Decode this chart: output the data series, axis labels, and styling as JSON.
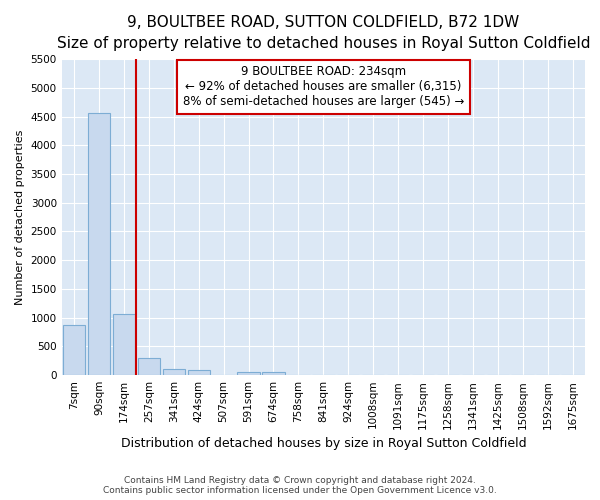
{
  "title": "9, BOULTBEE ROAD, SUTTON COLDFIELD, B72 1DW",
  "subtitle": "Size of property relative to detached houses in Royal Sutton Coldfield",
  "xlabel": "Distribution of detached houses by size in Royal Sutton Coldfield",
  "ylabel": "Number of detached properties",
  "footer_line1": "Contains HM Land Registry data © Crown copyright and database right 2024.",
  "footer_line2": "Contains public sector information licensed under the Open Government Licence v3.0.",
  "categories": [
    "7sqm",
    "90sqm",
    "174sqm",
    "257sqm",
    "341sqm",
    "424sqm",
    "507sqm",
    "591sqm",
    "674sqm",
    "758sqm",
    "841sqm",
    "924sqm",
    "1008sqm",
    "1091sqm",
    "1175sqm",
    "1258sqm",
    "1341sqm",
    "1425sqm",
    "1508sqm",
    "1592sqm",
    "1675sqm"
  ],
  "values": [
    880,
    4560,
    1060,
    290,
    100,
    90,
    0,
    55,
    55,
    0,
    0,
    0,
    0,
    0,
    0,
    0,
    0,
    0,
    0,
    0,
    0
  ],
  "bar_color": "#c8d9ee",
  "bar_edge_color": "#7dadd4",
  "vline_color": "#cc0000",
  "ylim": [
    0,
    5500
  ],
  "yticks": [
    0,
    500,
    1000,
    1500,
    2000,
    2500,
    3000,
    3500,
    4000,
    4500,
    5000,
    5500
  ],
  "annotation_line1": "9 BOULTBEE ROAD: 234sqm",
  "annotation_line2": "← 92% of detached houses are smaller (6,315)",
  "annotation_line3": "8% of semi-detached houses are larger (545) →",
  "annotation_box_color": "#ffffff",
  "annotation_box_edge": "#cc0000",
  "fig_bg_color": "#ffffff",
  "plot_bg_color": "#dce8f5",
  "title_fontsize": 11,
  "subtitle_fontsize": 9,
  "ylabel_fontsize": 8,
  "xlabel_fontsize": 9,
  "tick_fontsize": 7.5,
  "annotation_fontsize": 8.5
}
